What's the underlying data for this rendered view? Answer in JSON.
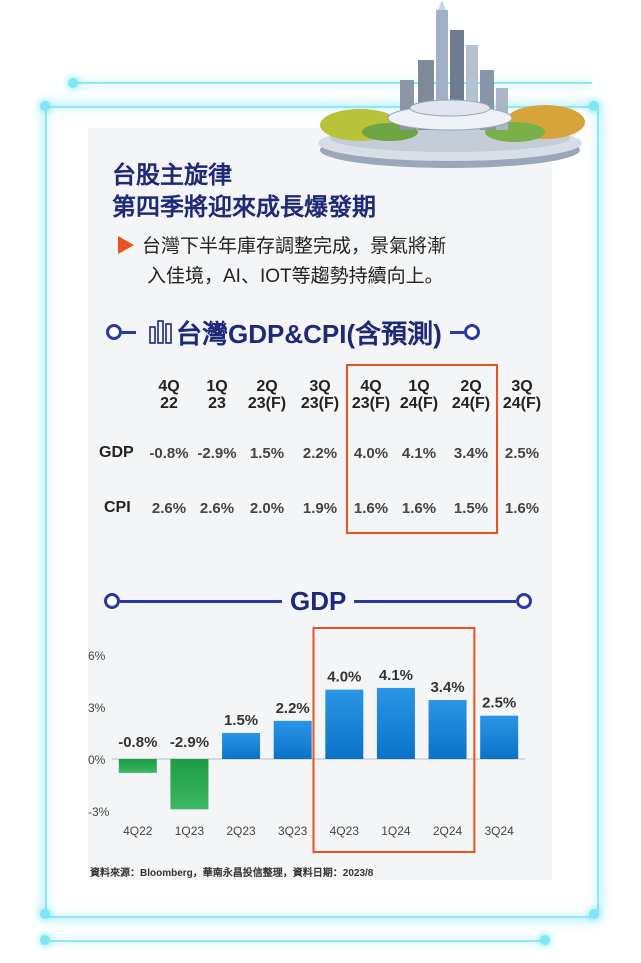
{
  "header": {
    "title_line1": "台股主旋律",
    "title_line2": "第四季將迎來成長爆發期",
    "desc_line1": "台灣下半年庫存調整完成，景氣將漸",
    "desc_line2": "入佳境，AI、IOT等趨勢持續向上。"
  },
  "table_section": {
    "title": "台灣GDP&CPI(含預測)",
    "columns": [
      {
        "top": "4Q",
        "bottom": "22"
      },
      {
        "top": "1Q",
        "bottom": "23"
      },
      {
        "top": "2Q",
        "bottom": "23(F)"
      },
      {
        "top": "3Q",
        "bottom": "23(F)"
      },
      {
        "top": "4Q",
        "bottom": "23(F)"
      },
      {
        "top": "1Q",
        "bottom": "24(F)"
      },
      {
        "top": "2Q",
        "bottom": "24(F)"
      },
      {
        "top": "3Q",
        "bottom": "24(F)"
      }
    ],
    "rows": [
      {
        "label": "GDP",
        "values": [
          "-0.8%",
          "-2.9%",
          "1.5%",
          "2.2%",
          "4.0%",
          "4.1%",
          "3.4%",
          "2.5%"
        ]
      },
      {
        "label": "CPI",
        "values": [
          "2.6%",
          "2.6%",
          "2.0%",
          "1.9%",
          "1.6%",
          "1.6%",
          "1.5%",
          "1.6%"
        ]
      }
    ]
  },
  "chart_section": {
    "title": "GDP"
  },
  "chart_data": {
    "type": "bar",
    "categories": [
      "4Q22",
      "1Q23",
      "2Q23",
      "3Q23",
      "4Q23",
      "1Q24",
      "2Q24",
      "3Q24"
    ],
    "values": [
      -0.8,
      -2.9,
      1.5,
      2.2,
      4.0,
      4.1,
      3.4,
      2.5
    ],
    "data_labels": [
      "-0.8%",
      "-2.9%",
      "1.5%",
      "2.2%",
      "4.0%",
      "4.1%",
      "3.4%",
      "2.5%"
    ],
    "yticks": [
      "6%",
      "3%",
      "0%",
      "-3%"
    ],
    "ytick_values": [
      6,
      3,
      0,
      -3
    ],
    "ylim": [
      -3,
      6
    ],
    "grid": false,
    "highlight_categories": [
      "4Q23",
      "1Q24",
      "2Q24"
    ],
    "colors": {
      "positive": "#0a73c9",
      "negative": "#1e9b45",
      "highlight_box": "#e8531f"
    }
  },
  "footer": {
    "source": "資料來源：Bloomberg，華南永昌投信整理，資料日期：2023/8"
  },
  "colors": {
    "title": "#1e2a78",
    "accent": "#e8531f",
    "frame": "#8fe8f5"
  }
}
